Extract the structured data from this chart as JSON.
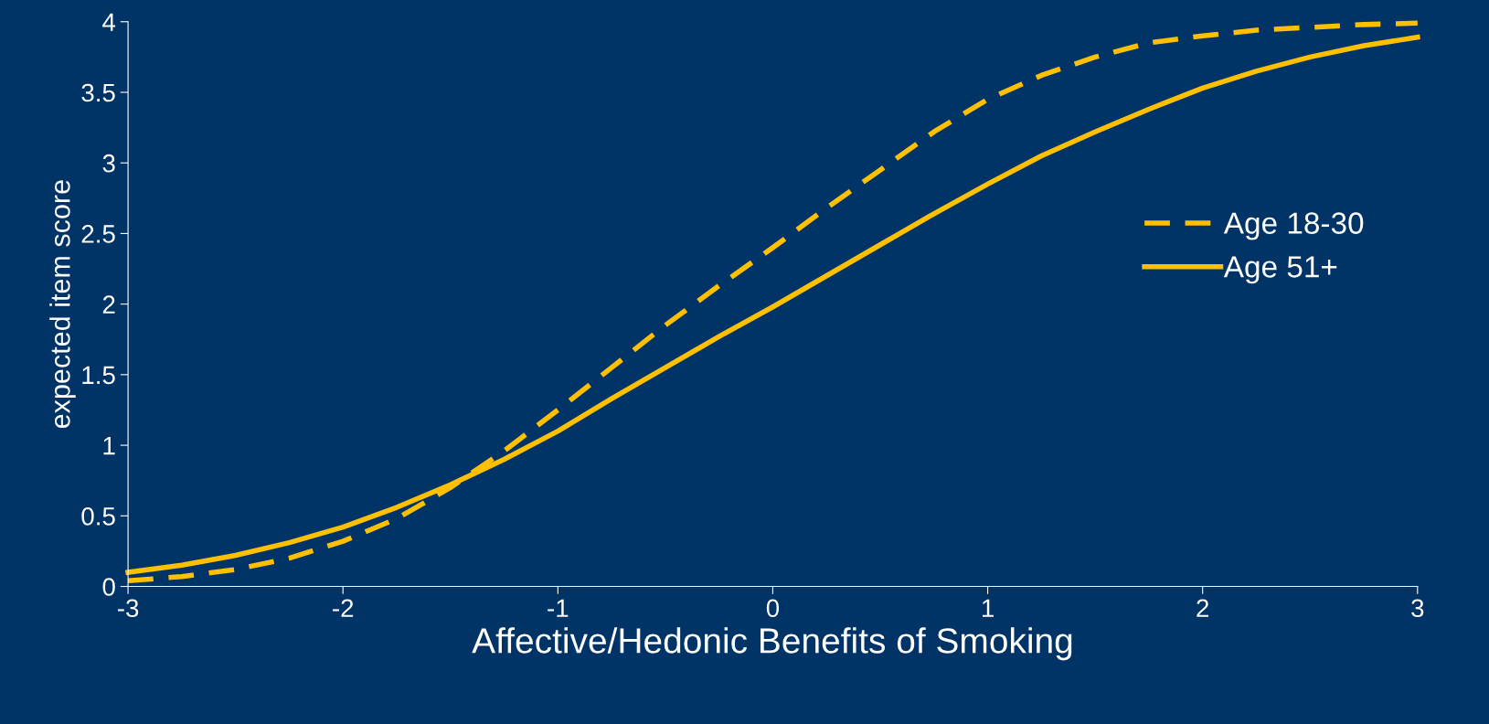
{
  "chart_data": {
    "type": "line",
    "xlabel": "Affective/Hedonic Benefits of Smoking",
    "ylabel": "expected item score",
    "x": [
      -3,
      -2.75,
      -2.5,
      -2.25,
      -2,
      -1.75,
      -1.5,
      -1.25,
      -1,
      -0.75,
      -0.5,
      -0.25,
      0,
      0.25,
      0.5,
      0.75,
      1,
      1.25,
      1.5,
      1.75,
      2,
      2.25,
      2.5,
      2.75,
      3
    ],
    "series": [
      {
        "name": "Age 18-30",
        "color": "#ffc000",
        "line_style": "dashed",
        "values": [
          0.04,
          0.07,
          0.12,
          0.2,
          0.32,
          0.48,
          0.7,
          0.96,
          1.25,
          1.55,
          1.85,
          2.13,
          2.4,
          2.68,
          2.95,
          3.22,
          3.45,
          3.62,
          3.75,
          3.85,
          3.9,
          3.94,
          3.96,
          3.98,
          3.99
        ]
      },
      {
        "name": "Age 51+",
        "color": "#ffc000",
        "line_style": "solid",
        "values": [
          0.1,
          0.15,
          0.22,
          0.31,
          0.42,
          0.56,
          0.72,
          0.9,
          1.1,
          1.33,
          1.55,
          1.77,
          1.98,
          2.2,
          2.42,
          2.64,
          2.85,
          3.05,
          3.22,
          3.38,
          3.53,
          3.65,
          3.75,
          3.83,
          3.89
        ]
      }
    ],
    "xlim": [
      -3,
      3
    ],
    "xticks": [
      -3,
      -2,
      -1,
      0,
      1,
      2,
      3
    ],
    "ylim": [
      0,
      4
    ],
    "yticks": [
      0,
      0.5,
      1,
      1.5,
      2,
      2.5,
      3,
      3.5,
      4
    ],
    "grid": false,
    "legend": "right",
    "marker": "none"
  }
}
